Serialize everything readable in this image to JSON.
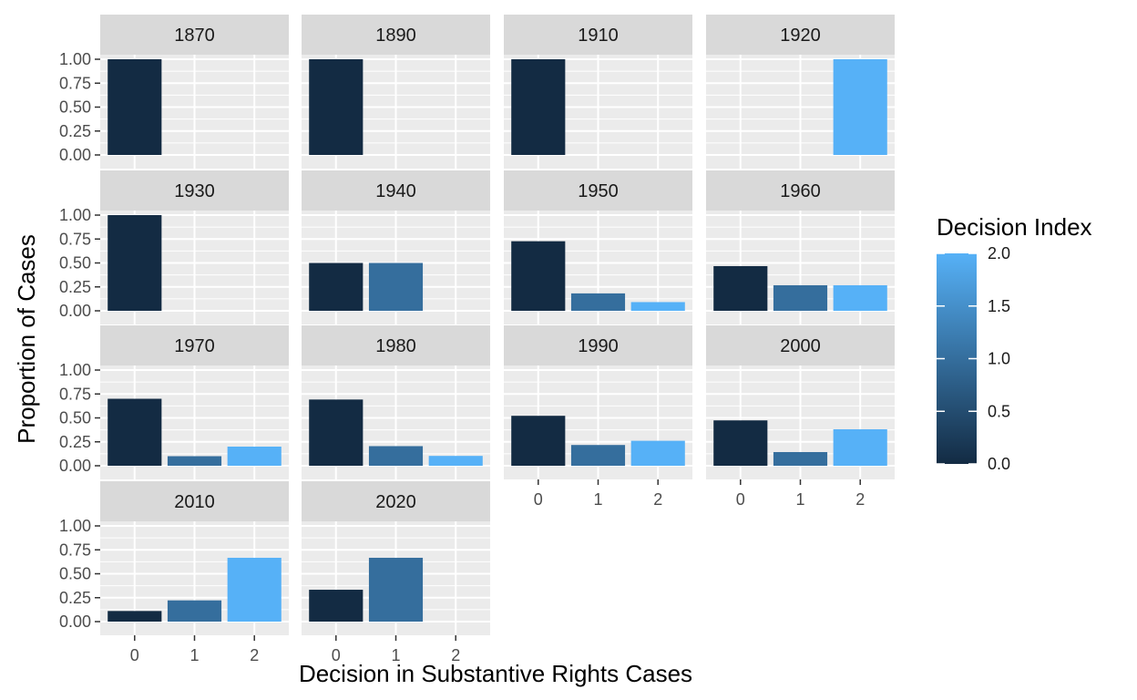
{
  "chart_data": {
    "type": "bar",
    "xlabel": "Decision in Substantive Rights Cases",
    "ylabel": "Proportion of Cases",
    "categories": [
      "0",
      "1",
      "2"
    ],
    "ylim": [
      0,
      1.0
    ],
    "y_ticks": [
      "0.00",
      "0.25",
      "0.50",
      "0.75",
      "1.00"
    ],
    "grid": true,
    "facets": [
      {
        "label": "1870",
        "values": [
          1.0,
          0,
          0
        ]
      },
      {
        "label": "1890",
        "values": [
          1.0,
          0,
          0
        ]
      },
      {
        "label": "1910",
        "values": [
          1.0,
          0,
          0
        ]
      },
      {
        "label": "1920",
        "values": [
          0,
          0,
          1.0
        ]
      },
      {
        "label": "1930",
        "values": [
          1.0,
          0,
          0
        ]
      },
      {
        "label": "1940",
        "values": [
          0.5,
          0.5,
          0
        ]
      },
      {
        "label": "1950",
        "values": [
          0.727,
          0.182,
          0.091
        ]
      },
      {
        "label": "1960",
        "values": [
          0.467,
          0.267,
          0.267
        ]
      },
      {
        "label": "1970",
        "values": [
          0.7,
          0.1,
          0.2
        ]
      },
      {
        "label": "1980",
        "values": [
          0.692,
          0.205,
          0.103
        ]
      },
      {
        "label": "1990",
        "values": [
          0.522,
          0.217,
          0.261
        ]
      },
      {
        "label": "2000",
        "values": [
          0.474,
          0.143,
          0.381
        ]
      },
      {
        "label": "2010",
        "values": [
          0.111,
          0.222,
          0.667
        ]
      },
      {
        "label": "2020",
        "values": [
          0.333,
          0.667,
          0
        ]
      }
    ],
    "legend": {
      "title": "Decision Index",
      "placement": "right",
      "ticks": [
        "0.0",
        "0.5",
        "1.0",
        "1.5",
        "2.0"
      ],
      "color_low": "#132B43",
      "color_high": "#56B1F7"
    },
    "colors": {
      "panel_bg": "#EBEBEB",
      "grid": "#FFFFFF",
      "strip_bg": "#D9D9D9"
    }
  }
}
